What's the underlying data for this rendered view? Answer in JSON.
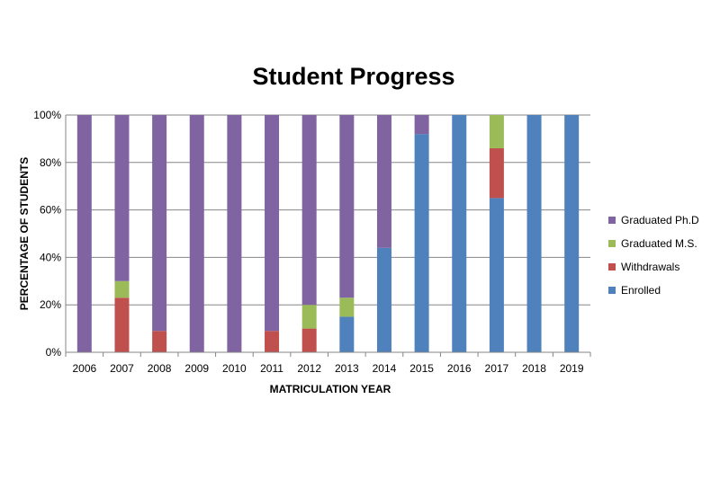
{
  "chart_data": {
    "type": "bar",
    "stacked": true,
    "title": "Student Progress",
    "xlabel": "MATRICULATION YEAR",
    "ylabel": "PERCENTAGE OF STUDENTS",
    "ylim": [
      0,
      100
    ],
    "yticks": [
      "0%",
      "20%",
      "40%",
      "60%",
      "80%",
      "100%"
    ],
    "grid": true,
    "legend": "right",
    "categories": [
      "2006",
      "2007",
      "2008",
      "2009",
      "2010",
      "2011",
      "2012",
      "2013",
      "2014",
      "2015",
      "2016",
      "2017",
      "2018",
      "2019"
    ],
    "series": [
      {
        "name": "Enrolled",
        "color": "#4F81BD",
        "values": [
          0,
          0,
          0,
          0,
          0,
          0,
          0,
          15,
          44,
          92,
          100,
          65,
          100,
          100
        ]
      },
      {
        "name": "Withdrawals",
        "color": "#C0504D",
        "values": [
          0,
          23,
          9,
          0,
          0,
          9,
          10,
          0,
          0,
          0,
          0,
          21,
          0,
          0
        ]
      },
      {
        "name": "Graduated M.S.",
        "color": "#9BBB59",
        "values": [
          0,
          7,
          0,
          0,
          0,
          0,
          10,
          8,
          0,
          0,
          0,
          14,
          0,
          0
        ]
      },
      {
        "name": "Graduated Ph.D",
        "color": "#8064A2",
        "values": [
          100,
          70,
          91,
          100,
          100,
          91,
          80,
          77,
          56,
          8,
          0,
          0,
          0,
          0
        ]
      }
    ],
    "legend_order": [
      "Graduated Ph.D",
      "Graduated M.S.",
      "Withdrawals",
      "Enrolled"
    ]
  }
}
